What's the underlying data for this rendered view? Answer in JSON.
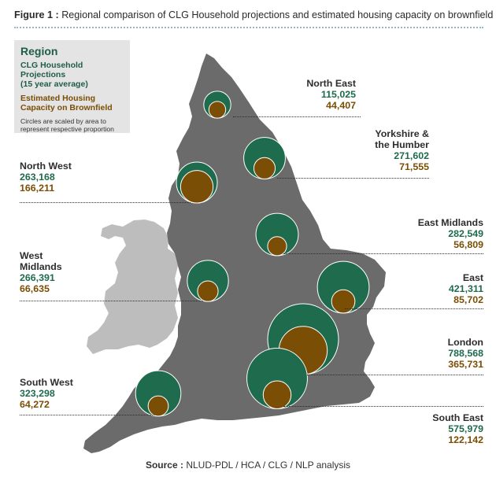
{
  "title": {
    "label": "Figure 1 :",
    "text": "Regional comparison of CLG Household projections and estimated housing capacity on brownfield sites"
  },
  "legend": {
    "heading": "Region",
    "green_line1": "CLG Household Projections",
    "green_line2": "(15 year average)",
    "brown_line1": "Estimated Housing",
    "brown_line2": "Capacity on Brownfield",
    "note_line1": "Circles are scaled by area to",
    "note_line2": "represent respective proportion"
  },
  "colors": {
    "england": "#6b6b6b",
    "wales": "#bdbdbd",
    "household_circle": "#1f6b4d",
    "brownfield_circle": "#7a4e05"
  },
  "regions": [
    {
      "key": "north-east",
      "name_lines": [
        "North East"
      ],
      "household": "115,025",
      "brownfield": "44,407",
      "household_value": 115025,
      "brownfield_value": 44407
    },
    {
      "key": "yorkshire",
      "name_lines": [
        "Yorkshire &",
        "the Humber"
      ],
      "household": "271,602",
      "brownfield": "71,555",
      "household_value": 271602,
      "brownfield_value": 71555
    },
    {
      "key": "north-west",
      "name_lines": [
        "North West"
      ],
      "household": "263,168",
      "brownfield": "166,211",
      "household_value": 263168,
      "brownfield_value": 166211
    },
    {
      "key": "east-midlands",
      "name_lines": [
        "East Midlands"
      ],
      "household": "282,549",
      "brownfield": "56,809",
      "household_value": 282549,
      "brownfield_value": 56809
    },
    {
      "key": "west-midlands",
      "name_lines": [
        "West",
        "Midlands"
      ],
      "household": "266,391",
      "brownfield": "66,635",
      "household_value": 266391,
      "brownfield_value": 66635
    },
    {
      "key": "east",
      "name_lines": [
        "East"
      ],
      "household": "421,311",
      "brownfield": "85,702",
      "household_value": 421311,
      "brownfield_value": 85702
    },
    {
      "key": "london",
      "name_lines": [
        "London"
      ],
      "household": "788,568",
      "brownfield": "365,731",
      "household_value": 788568,
      "brownfield_value": 365731
    },
    {
      "key": "south-west",
      "name_lines": [
        "South West"
      ],
      "household": "323,298",
      "brownfield": "64,272",
      "household_value": 323298,
      "brownfield_value": 64272
    },
    {
      "key": "south-east",
      "name_lines": [
        "South East"
      ],
      "household": "575,979",
      "brownfield": "122,142",
      "household_value": 575979,
      "brownfield_value": 122142
    }
  ],
  "source": {
    "label": "Source :",
    "text": "NLUD-PDL / HCA / CLG / NLP analysis"
  }
}
